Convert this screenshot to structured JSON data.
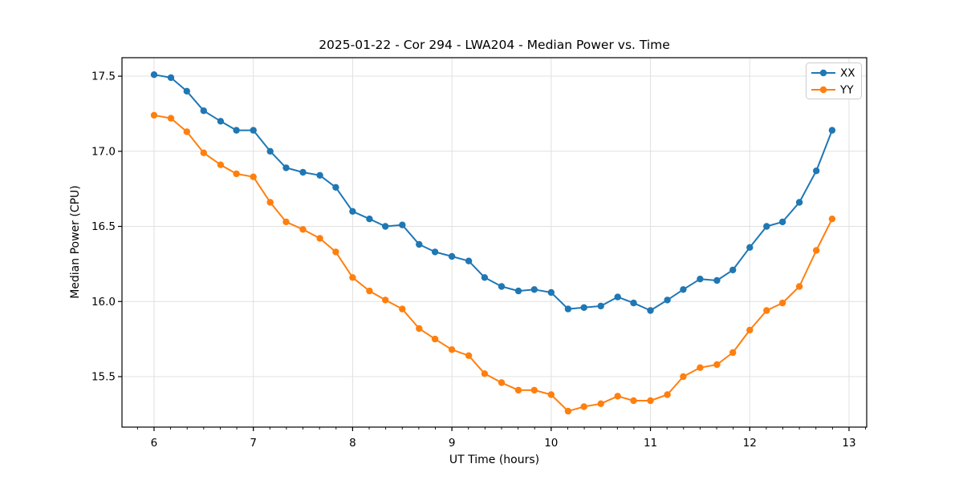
{
  "chart_data": {
    "type": "line",
    "title": "2025-01-22 - Cor 294 - LWA204 - Median Power vs. Time",
    "xlabel": "UT Time (hours)",
    "ylabel": "Median Power (CPU)",
    "xlim": [
      5.677,
      13.178
    ],
    "ylim": [
      15.164,
      17.623
    ],
    "x_ticks": [
      6,
      7,
      8,
      9,
      10,
      11,
      12,
      13
    ],
    "x_minor_tick_step_hours": 0.1666667,
    "y_ticks": [
      15.5,
      16.0,
      16.5,
      17.0,
      17.5
    ],
    "grid": true,
    "grid_color": "#e0e0e0",
    "legend_position": "upper right",
    "x": [
      6.0,
      6.17,
      6.33,
      6.5,
      6.67,
      6.83,
      7.0,
      7.17,
      7.33,
      7.5,
      7.67,
      7.83,
      8.0,
      8.17,
      8.33,
      8.5,
      8.67,
      8.83,
      9.0,
      9.17,
      9.33,
      9.5,
      9.67,
      9.83,
      10.0,
      10.17,
      10.33,
      10.5,
      10.67,
      10.83,
      11.0,
      11.17,
      11.33,
      11.5,
      11.67,
      11.83,
      12.0,
      12.17,
      12.33,
      12.5,
      12.67,
      12.83
    ],
    "series": [
      {
        "name": "XX",
        "color": "#1f77b4",
        "values": [
          17.51,
          17.49,
          17.4,
          17.27,
          17.2,
          17.14,
          17.14,
          17.0,
          16.89,
          16.86,
          16.84,
          16.76,
          16.6,
          16.55,
          16.5,
          16.51,
          16.38,
          16.33,
          16.3,
          16.27,
          16.16,
          16.1,
          16.07,
          16.08,
          16.06,
          15.95,
          15.96,
          15.97,
          16.03,
          15.99,
          15.94,
          16.01,
          16.08,
          16.15,
          16.14,
          16.21,
          16.36,
          16.5,
          16.53,
          16.66,
          16.87,
          17.14
        ]
      },
      {
        "name": "YY",
        "color": "#ff7f0e",
        "values": [
          17.24,
          17.22,
          17.13,
          16.99,
          16.91,
          16.85,
          16.83,
          16.66,
          16.53,
          16.48,
          16.42,
          16.33,
          16.16,
          16.07,
          16.01,
          15.95,
          15.82,
          15.75,
          15.68,
          15.64,
          15.52,
          15.46,
          15.41,
          15.41,
          15.38,
          15.27,
          15.3,
          15.32,
          15.37,
          15.34,
          15.34,
          15.38,
          15.5,
          15.56,
          15.58,
          15.66,
          15.81,
          15.94,
          15.99,
          16.1,
          16.34,
          16.55
        ]
      }
    ]
  }
}
